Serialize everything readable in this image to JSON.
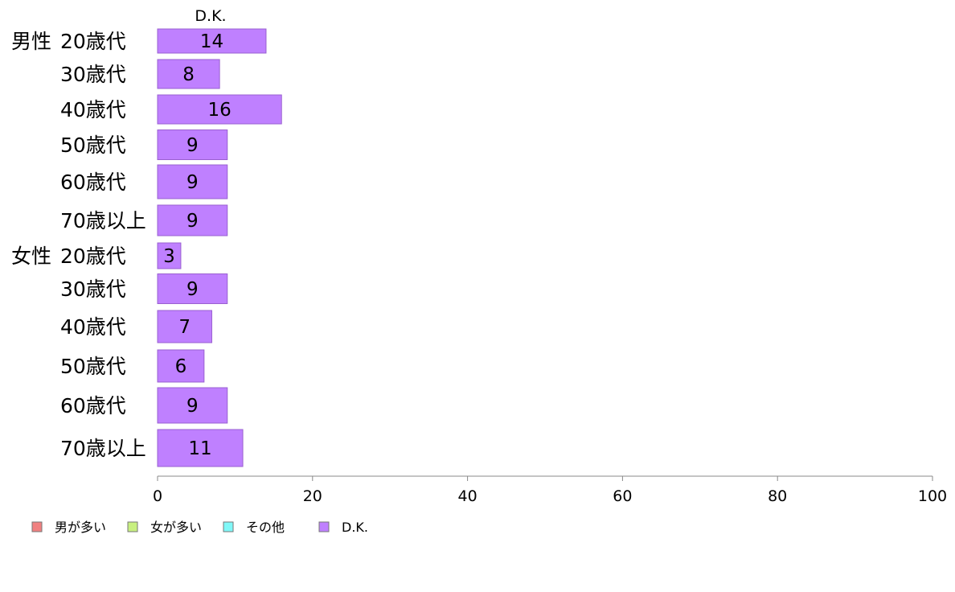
{
  "chart_data": {
    "type": "bar",
    "orientation": "horizontal",
    "stacked": true,
    "groups": [
      "男性",
      "女性"
    ],
    "categories": [
      "20歳代",
      "30歳代",
      "40歳代",
      "50歳代",
      "60歳代",
      "70歳以上",
      "20歳代",
      "30歳代",
      "40歳代",
      "50歳代",
      "60歳代",
      "70歳以上"
    ],
    "series": [
      {
        "name": "男が多い",
        "color": "#f08080",
        "values": [
          0,
          0,
          0,
          0,
          0,
          0,
          0,
          0,
          0,
          0,
          0,
          0
        ]
      },
      {
        "name": "女が多い",
        "color": "#c8f080",
        "values": [
          0,
          0,
          0,
          0,
          0,
          0,
          0,
          0,
          0,
          0,
          0,
          0
        ]
      },
      {
        "name": "その他",
        "color": "#80f8f8",
        "values": [
          0,
          0,
          0,
          0,
          0,
          0,
          0,
          0,
          0,
          0,
          0,
          0
        ]
      },
      {
        "name": "D.K.",
        "color": "#bf80ff",
        "values": [
          14,
          8,
          16,
          9,
          9,
          9,
          3,
          9,
          7,
          6,
          9,
          11
        ]
      }
    ],
    "series_header": "D.K.",
    "xlim": [
      0,
      100
    ],
    "xticks": [
      0,
      20,
      40,
      60,
      80,
      100
    ],
    "legend_position": "bottom-left",
    "grid": false
  }
}
